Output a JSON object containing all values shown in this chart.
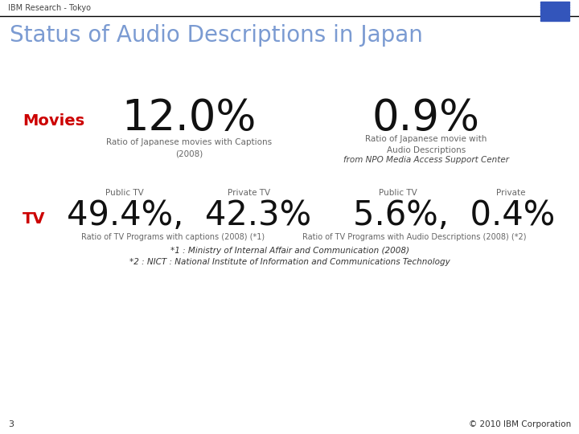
{
  "header_text": "IBM Research - Tokyo",
  "title": "Status of Audio Descriptions in Japan",
  "title_color": "#7B9BD2",
  "background_color": "#FFFFFF",
  "movies_label": "Movies",
  "movies_label_color": "#CC0000",
  "movies_big1": "12.0%",
  "movies_big2": "0.9%",
  "movies_big_color": "#111111",
  "movies_sub1": "Ratio of Japanese movies with Captions\n(2008)",
  "movies_sub2": "Ratio of Japanese movie with\nAudio Descriptions",
  "movies_sub3": "from NPO Media Access Support Center",
  "movies_sub_color": "#666666",
  "movies_sub3_color": "#444444",
  "tv_label": "TV",
  "tv_label_color": "#CC0000",
  "tv_public1": "Public TV",
  "tv_private1": "Private TV",
  "tv_public2": "Public TV",
  "tv_private2": "Private",
  "tv_big1": "49.4%,  42.3%",
  "tv_big2": "5.6%,  0.4%",
  "tv_label1": "Ratio of TV Programs with captions (2008) (*1)",
  "tv_label2": "Ratio of TV Programs with Audio Descriptions (2008) (*2)",
  "tv_footnote1": "*1 : Ministry of Internal Affair and Communication (2008)",
  "tv_footnote2": "*2 : NICT : National Institute of Information and Communications Technology",
  "tv_sub_color": "#666666",
  "page_number": "3",
  "copyright": "© 2010 IBM Corporation",
  "header_line_color": "#000000",
  "ibm_logo_color": "#4455CC"
}
